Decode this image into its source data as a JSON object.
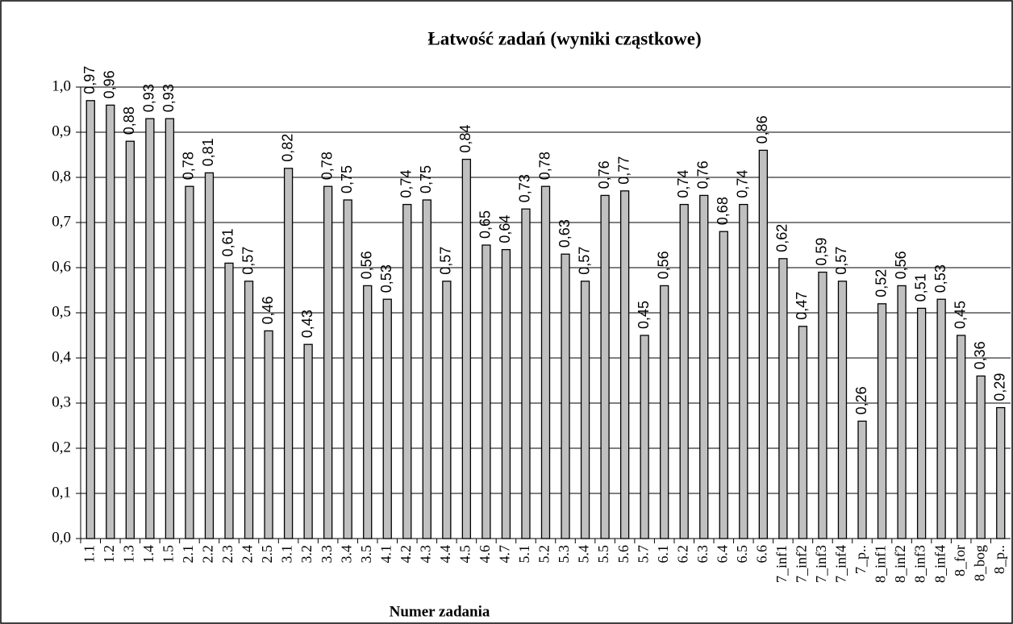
{
  "chart_data": {
    "type": "bar",
    "title": "Łatwość zadań (wyniki cząstkowe)",
    "x_label": "Numer zadania",
    "categories": [
      "1.1",
      "1.2",
      "1.3",
      "1.4",
      "1.5",
      "2.1",
      "2.2",
      "2.3",
      "2.4",
      "2.5",
      "3.1",
      "3.2",
      "3.3",
      "3.4",
      "3.5",
      "4.1",
      "4.2",
      "4.3",
      "4.4",
      "4.5",
      "4.6",
      "4.7",
      "5.1",
      "5.2",
      "5.3",
      "5.4",
      "5.5",
      "5.6",
      "5.7",
      "6.1",
      "6.2",
      "6.3",
      "6.4",
      "6.5",
      "6.6",
      "7_inf1",
      "7_inf2",
      "7_inf3",
      "7_inf4",
      "7_p..",
      "8_inf1",
      "8_inf2",
      "8_inf3",
      "8_inf4",
      "8_for",
      "8_bog",
      "8_p.."
    ],
    "values": [
      0.97,
      0.96,
      0.88,
      0.93,
      0.93,
      0.78,
      0.81,
      0.61,
      0.57,
      0.46,
      0.82,
      0.43,
      0.78,
      0.75,
      0.56,
      0.53,
      0.74,
      0.75,
      0.57,
      0.84,
      0.65,
      0.64,
      0.73,
      0.78,
      0.63,
      0.57,
      0.76,
      0.77,
      0.45,
      0.56,
      0.74,
      0.76,
      0.68,
      0.74,
      0.86,
      0.62,
      0.47,
      0.59,
      0.57,
      0.26,
      0.52,
      0.56,
      0.51,
      0.53,
      0.45,
      0.36,
      0.29
    ],
    "value_labels": [
      "0,97",
      "0,96",
      "0,88",
      "0,93",
      "0,93",
      "0,78",
      "0,81",
      "0,61",
      "0,57",
      "0,46",
      "0,82",
      "0,43",
      "0,78",
      "0,75",
      "0,56",
      "0,53",
      "0,74",
      "0,75",
      "0,57",
      "0,84",
      "0,65",
      "0,64",
      "0,73",
      "0,78",
      "0,63",
      "0,57",
      "0,76",
      "0,77",
      "0,45",
      "0,56",
      "0,74",
      "0,76",
      "0,68",
      "0,74",
      "0,86",
      "0,62",
      "0,47",
      "0,59",
      "0,57",
      "0,26",
      "0,52",
      "0,56",
      "0,51",
      "0,53",
      "0,45",
      "0,36",
      "0,29"
    ],
    "color": "#c0c0c0",
    "ylim": [
      0,
      1
    ],
    "yticks": [
      {
        "value": 0,
        "label": "0,0"
      },
      {
        "value": 0.1,
        "label": "0,1"
      },
      {
        "value": 0.2,
        "label": "0,2"
      },
      {
        "value": 0.3,
        "label": "0,3"
      },
      {
        "value": 0.4,
        "label": "0,4"
      },
      {
        "value": 0.5,
        "label": "0,5"
      },
      {
        "value": 0.6,
        "label": "0,6"
      },
      {
        "value": 0.7,
        "label": "0,7"
      },
      {
        "value": 0.8,
        "label": "0,8"
      },
      {
        "value": 0.9,
        "label": "0,9"
      },
      {
        "value": 1,
        "label": "1,0"
      }
    ],
    "grid": true
  }
}
